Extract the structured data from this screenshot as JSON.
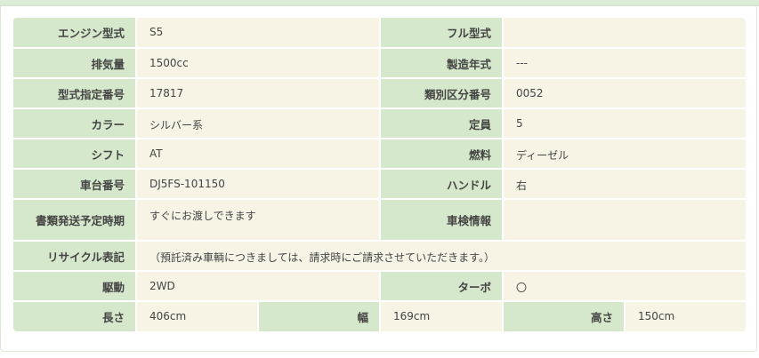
{
  "rows": [
    [
      {
        "label": "エンジン型式",
        "value": "S5"
      },
      {
        "label": "フル型式",
        "value": ""
      }
    ],
    [
      {
        "label": "排気量",
        "value": "1500cc"
      },
      {
        "label": "製造年式",
        "value": "---"
      }
    ],
    [
      {
        "label": "型式指定番号",
        "value": "17817"
      },
      {
        "label": "類別区分番号",
        "value": "0052"
      }
    ],
    [
      {
        "label": "カラー",
        "value": "シルバー系"
      },
      {
        "label": "定員",
        "value": "5"
      }
    ],
    [
      {
        "label": "シフト",
        "value": "AT"
      },
      {
        "label": "燃料",
        "value": "ディーゼル"
      }
    ],
    [
      {
        "label": "車台番号",
        "value": "DJ5FS-101150"
      },
      {
        "label": "ハンドル",
        "value": "右"
      }
    ],
    [
      {
        "label": "書類発送予定時期",
        "value": "すぐにお渡しできます"
      },
      {
        "label": "車検情報",
        "value": ""
      }
    ]
  ],
  "recycle": {
    "label": "リサイクル表記",
    "value": "（預託済み車輌につきましては、請求時にご請求させていただきます。）"
  },
  "drive_row": [
    {
      "label": "駆動",
      "value": "2WD"
    },
    {
      "label": "ターボ",
      "value": "〇"
    }
  ],
  "dimensions": [
    {
      "label": "長さ",
      "value": "406cm"
    },
    {
      "label": "幅",
      "value": "169cm"
    },
    {
      "label": "高さ",
      "value": "150cm"
    }
  ],
  "colors": {
    "label_bg": "#d5e8cb",
    "value_bg": "#f7f4e6"
  }
}
